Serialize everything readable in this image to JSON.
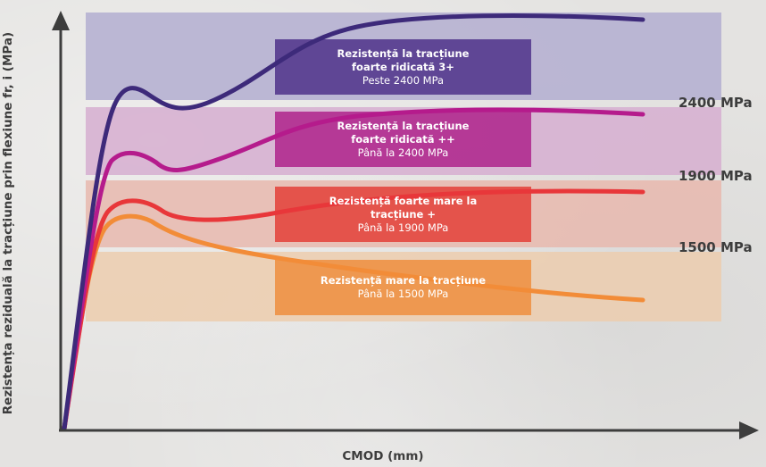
{
  "axes": {
    "ylabel": "Rezistența reziduală la tracțiune prin flexiune fr, i (MPa)",
    "xlabel": "CMOD (mm)"
  },
  "thresholds": [
    {
      "label": "2400 MPa"
    },
    {
      "label": "1900 MPa"
    },
    {
      "label": "1500 MPa"
    }
  ],
  "bands": [
    {
      "title": "Rezistență la tracțiune foarte ridicată 3+",
      "subtitle": "Peste 2400 MPa",
      "band_color": "#b3aed0",
      "box_color": "#553a8e",
      "curve_color": "#3d2a7a"
    },
    {
      "title": "Rezistență la tracțiune foarte ridicată ++",
      "subtitle": "Până la 2400 MPa",
      "band_color": "#d6aed0",
      "box_color": "#b02b8f",
      "curve_color": "#b51b8c"
    },
    {
      "title": "Rezistență foarte mare la tracțiune +",
      "subtitle": "Până la 1900 MPa",
      "band_color": "#e8b9ae",
      "box_color": "#e3473f",
      "curve_color": "#e8373a"
    },
    {
      "title": "Rezistență mare la tracțiune",
      "subtitle": "Până la 1500 MPa",
      "band_color": "#ecccae",
      "box_color": "#ee9145",
      "curve_color": "#f28c38"
    }
  ],
  "colors": {
    "axis": "#3d3d3d",
    "text": "#3d3d3d"
  }
}
